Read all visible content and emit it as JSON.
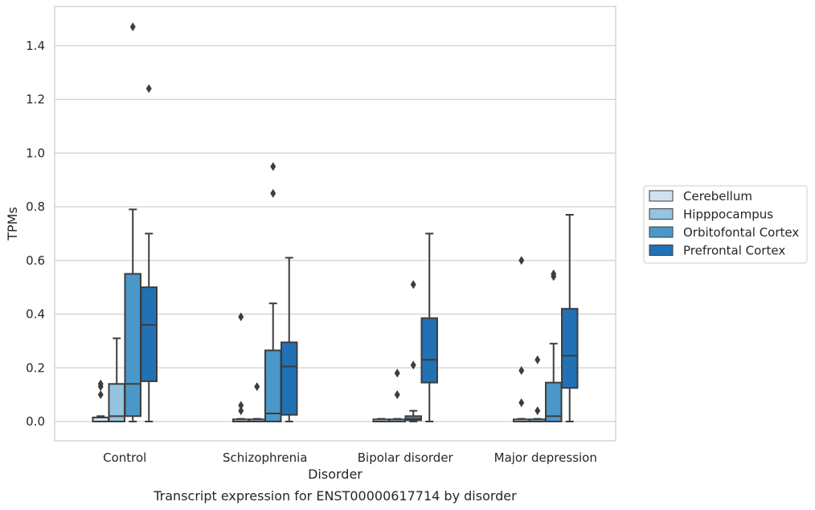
{
  "chart_data": {
    "type": "box",
    "title": "",
    "caption": "Transcript expression for ENST00000617714 by disorder",
    "xlabel": "Disorder",
    "ylabel": "TPMs",
    "ylim": [
      -0.07,
      1.55
    ],
    "yticks": [
      "0.0",
      "0.2",
      "0.4",
      "0.6",
      "0.8",
      "1.0",
      "1.2",
      "1.4"
    ],
    "ytick_values": [
      0.0,
      0.2,
      0.4,
      0.6,
      0.8,
      1.0,
      1.2,
      1.4
    ],
    "grid": "horizontal",
    "legend_position": "right",
    "categories": [
      "Control",
      "Schizophrenia",
      "Bipolar disorder",
      "Major depression"
    ],
    "series": [
      {
        "name": "Cerebellum",
        "color": "#d0e1f2",
        "boxes": [
          {
            "whisker_low": 0.0,
            "q1": 0.0,
            "median": 0.0,
            "q3": 0.015,
            "whisker_high": 0.02,
            "outliers": [
              0.1,
              0.13,
              0.14
            ]
          },
          {
            "whisker_low": 0.0,
            "q1": 0.0,
            "median": 0.0,
            "q3": 0.008,
            "whisker_high": 0.01,
            "outliers": [
              0.04,
              0.06,
              0.39
            ]
          },
          {
            "whisker_low": 0.0,
            "q1": 0.0,
            "median": 0.0,
            "q3": 0.008,
            "whisker_high": 0.01,
            "outliers": []
          },
          {
            "whisker_low": 0.0,
            "q1": 0.0,
            "median": 0.0,
            "q3": 0.008,
            "whisker_high": 0.01,
            "outliers": [
              0.07,
              0.19,
              0.6
            ]
          }
        ]
      },
      {
        "name": "Hipppocampus",
        "color": "#94c4df",
        "boxes": [
          {
            "whisker_low": 0.0,
            "q1": 0.0,
            "median": 0.02,
            "q3": 0.14,
            "whisker_high": 0.31,
            "outliers": []
          },
          {
            "whisker_low": 0.0,
            "q1": 0.0,
            "median": 0.0,
            "q3": 0.008,
            "whisker_high": 0.01,
            "outliers": [
              0.13
            ]
          },
          {
            "whisker_low": 0.0,
            "q1": 0.0,
            "median": 0.0,
            "q3": 0.008,
            "whisker_high": 0.01,
            "outliers": [
              0.1,
              0.18
            ]
          },
          {
            "whisker_low": 0.0,
            "q1": 0.0,
            "median": 0.0,
            "q3": 0.008,
            "whisker_high": 0.01,
            "outliers": [
              0.04,
              0.23
            ]
          }
        ]
      },
      {
        "name": "Orbitofontal Cortex",
        "color": "#4a98c9",
        "boxes": [
          {
            "whisker_low": 0.0,
            "q1": 0.02,
            "median": 0.14,
            "q3": 0.55,
            "whisker_high": 0.79,
            "outliers": [
              1.47
            ]
          },
          {
            "whisker_low": 0.0,
            "q1": 0.0,
            "median": 0.03,
            "q3": 0.265,
            "whisker_high": 0.44,
            "outliers": [
              0.85,
              0.95
            ]
          },
          {
            "whisker_low": 0.0,
            "q1": 0.005,
            "median": 0.01,
            "q3": 0.02,
            "whisker_high": 0.04,
            "outliers": [
              0.21,
              0.51
            ]
          },
          {
            "whisker_low": 0.0,
            "q1": 0.0,
            "median": 0.02,
            "q3": 0.145,
            "whisker_high": 0.29,
            "outliers": [
              0.54,
              0.55
            ]
          }
        ]
      },
      {
        "name": "Prefrontal Cortex",
        "color": "#2171b5",
        "boxes": [
          {
            "whisker_low": 0.0,
            "q1": 0.15,
            "median": 0.36,
            "q3": 0.5,
            "whisker_high": 0.7,
            "outliers": [
              1.24
            ]
          },
          {
            "whisker_low": 0.0,
            "q1": 0.025,
            "median": 0.205,
            "q3": 0.295,
            "whisker_high": 0.61,
            "outliers": []
          },
          {
            "whisker_low": 0.0,
            "q1": 0.145,
            "median": 0.23,
            "q3": 0.385,
            "whisker_high": 0.7,
            "outliers": []
          },
          {
            "whisker_low": 0.0,
            "q1": 0.125,
            "median": 0.245,
            "q3": 0.42,
            "whisker_high": 0.77,
            "outliers": []
          }
        ]
      }
    ]
  }
}
